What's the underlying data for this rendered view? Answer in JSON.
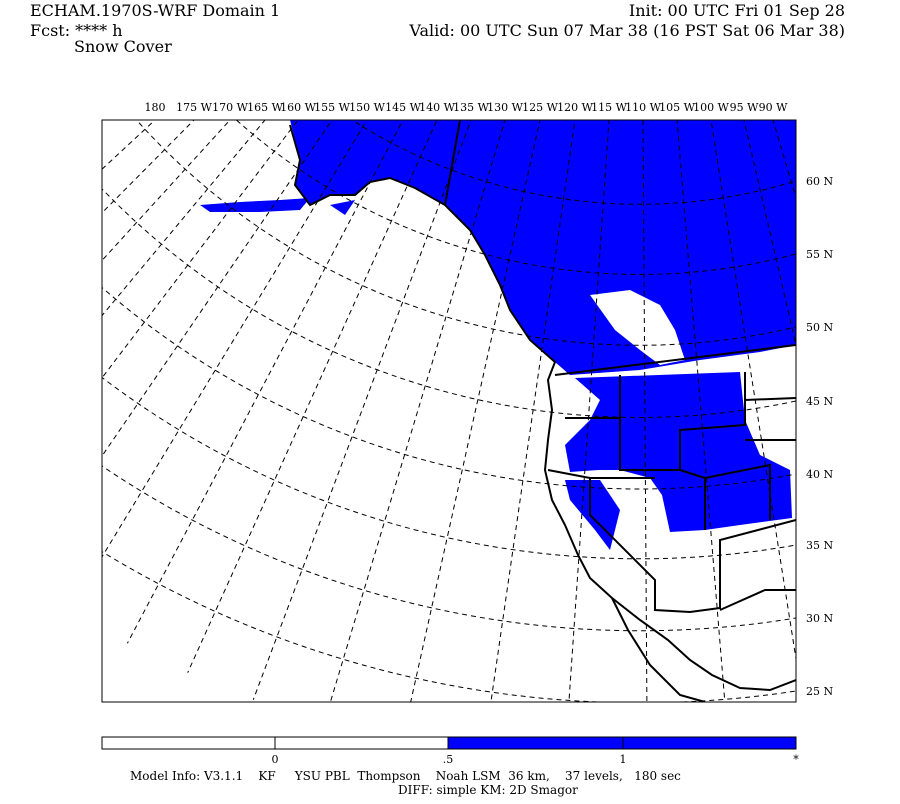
{
  "header": {
    "left": [
      "ECHAM.1970S-WRF Domain 1",
      "Fcst: **** h",
      "Snow Cover"
    ],
    "right": [
      "Init: 00 UTC Fri 01 Sep 28",
      "Valid: 00 UTC Sun 07 Mar 38 (16 PST Sat 06 Mar 38)"
    ]
  },
  "map": {
    "longitude_labels": [
      "180",
      "175 W",
      "170 W",
      "165 W",
      "160 W",
      "155 W",
      "150 W",
      "145 W",
      "140 W",
      "135 W",
      "130 W",
      "125 W",
      "120 W",
      "115 W",
      "110 W",
      "105 W",
      "100 W",
      "95 W",
      "90 W"
    ],
    "latitude_labels": [
      "60 N",
      "55 N",
      "50 N",
      "45 N",
      "40 N",
      "35 N",
      "30 N",
      "25 N"
    ]
  },
  "colorbar": {
    "labels": [
      "0",
      ".5",
      "1",
      "*"
    ]
  },
  "footer": [
    "Model Info: V3.1.1    KF     YSU PBL  Thompson    Noah LSM  36 km,    37 levels,   180 sec",
    "DIFF: simple KM: 2D Smagor"
  ]
}
